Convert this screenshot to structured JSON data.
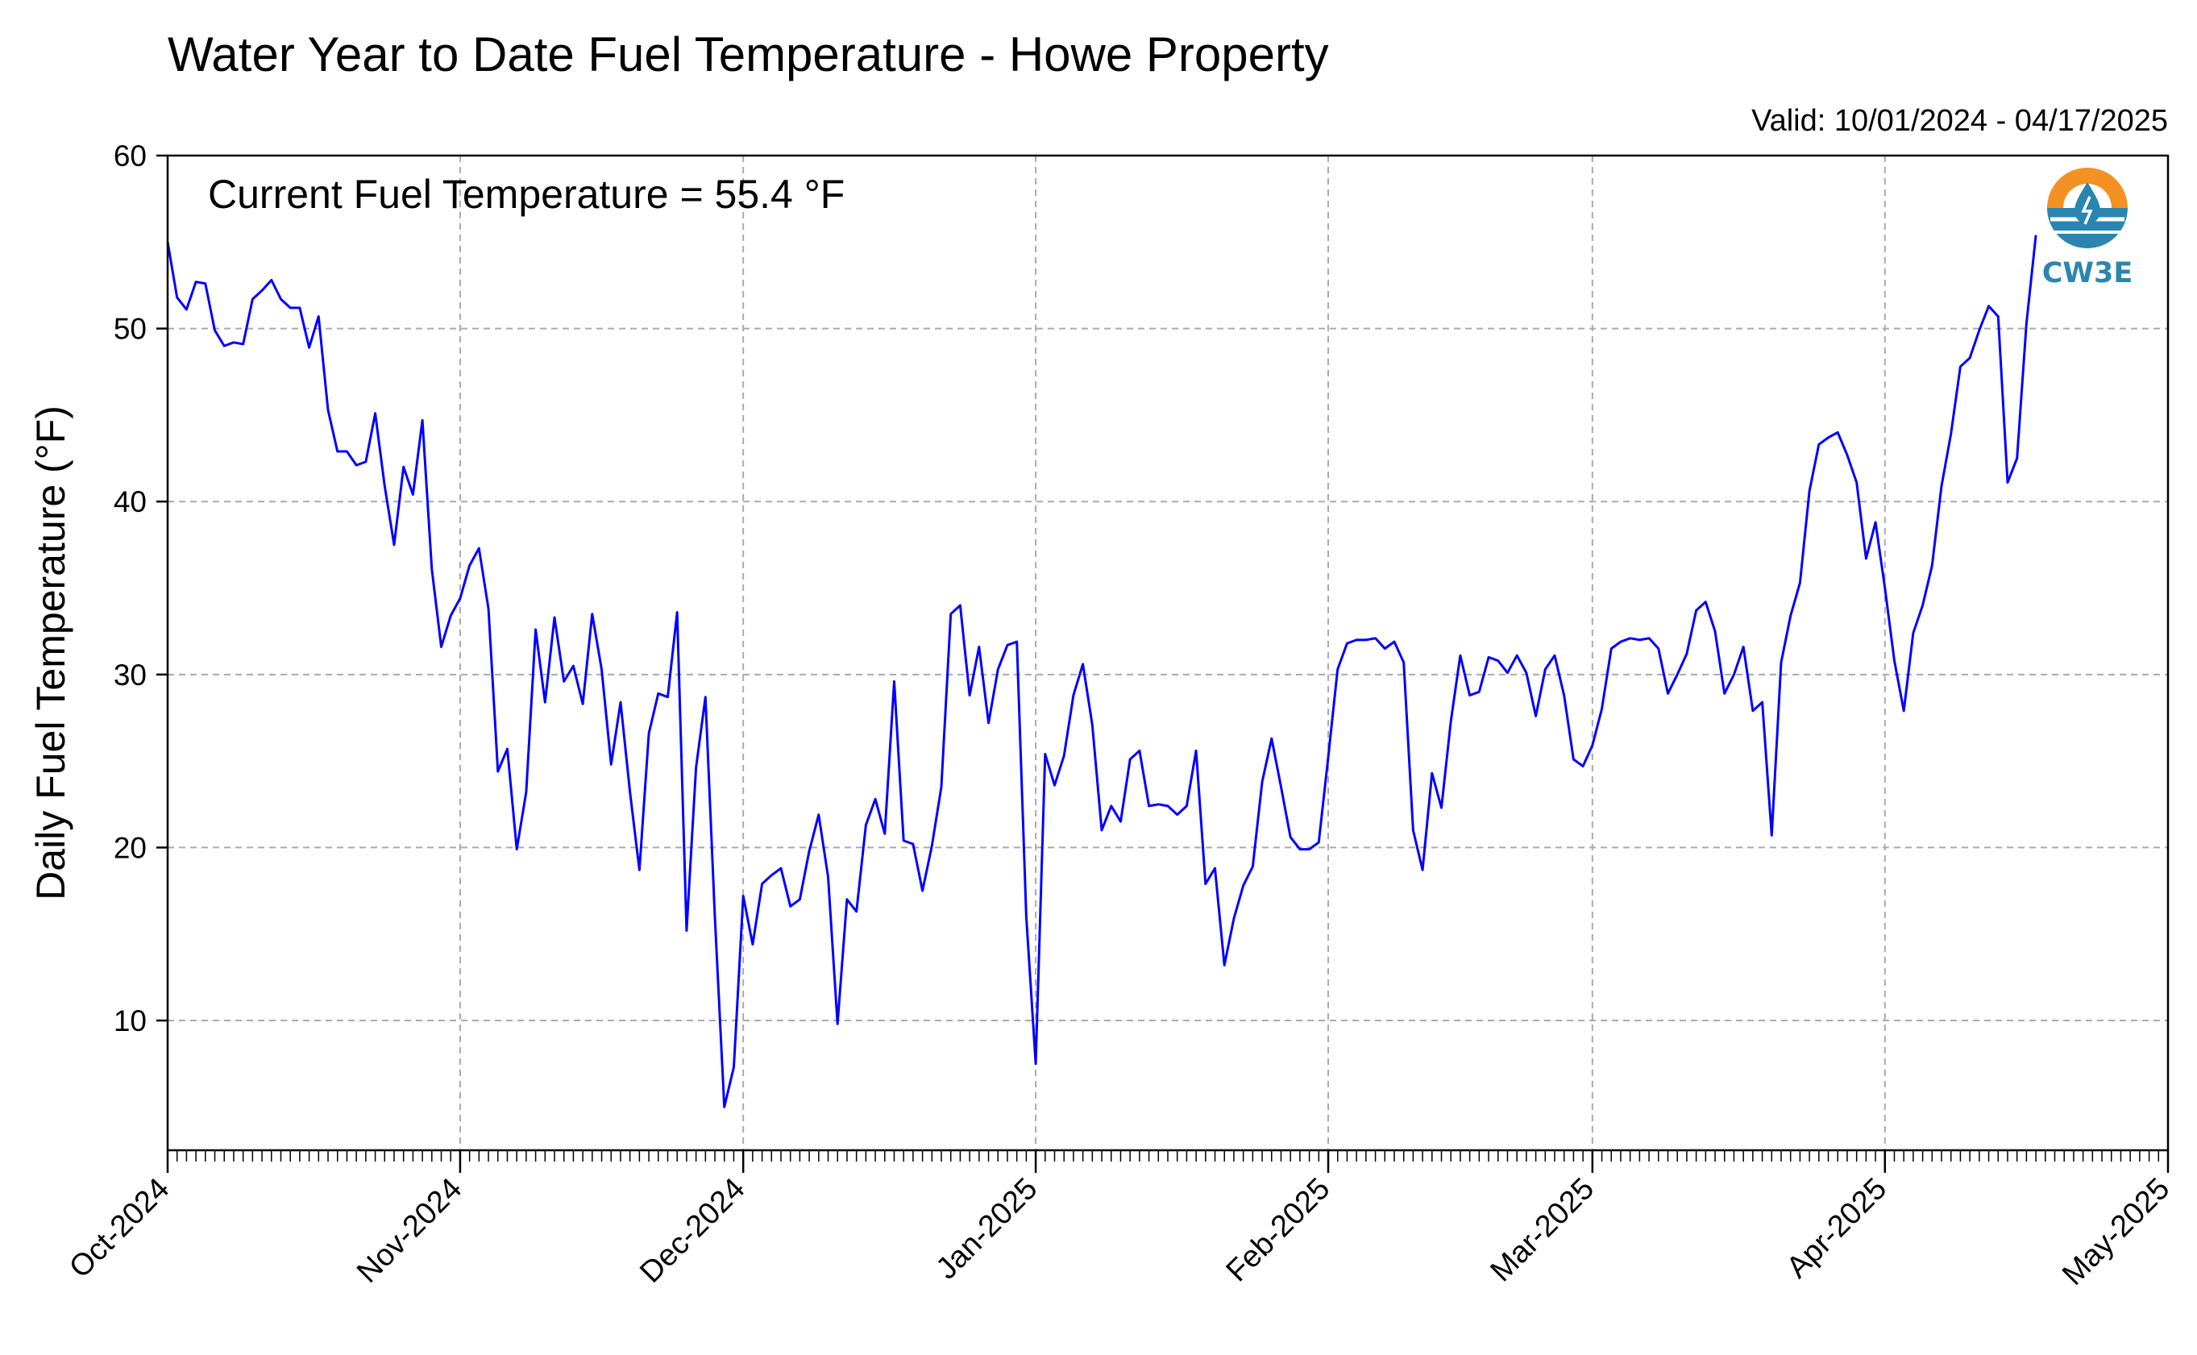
{
  "chart_data": {
    "type": "line",
    "title": "Water Year to Date Fuel Temperature - Howe Property",
    "valid_text": "Valid: 10/01/2024 - 04/17/2025",
    "annotation": "Current Fuel Temperature = 55.4 °F",
    "ylabel": "Daily Fuel Temperature (°F)",
    "xlabel": "",
    "ylim": [
      2.5,
      60
    ],
    "yticks": [
      10,
      20,
      30,
      40,
      50,
      60
    ],
    "xlim": [
      "2024-10-01",
      "2025-05-01"
    ],
    "xticks": [
      {
        "date": "2024-10-01",
        "label": "Oct-2024"
      },
      {
        "date": "2024-11-01",
        "label": "Nov-2024"
      },
      {
        "date": "2024-12-01",
        "label": "Dec-2024"
      },
      {
        "date": "2025-01-01",
        "label": "Jan-2025"
      },
      {
        "date": "2025-02-01",
        "label": "Feb-2025"
      },
      {
        "date": "2025-03-01",
        "label": "Mar-2025"
      },
      {
        "date": "2025-04-01",
        "label": "Apr-2025"
      },
      {
        "date": "2025-05-01",
        "label": "May-2025"
      }
    ],
    "grid": true,
    "line_color": "#0000ff",
    "series": [
      {
        "start_date": "2024-10-01",
        "values": [
          55.0,
          51.8,
          51.1,
          52.7,
          52.6,
          49.9,
          49.0,
          49.2,
          49.1,
          51.7,
          52.2,
          52.8,
          51.7,
          51.2,
          51.2,
          48.9,
          50.7,
          45.3,
          42.9,
          42.9,
          42.1,
          42.3,
          45.1,
          40.9,
          37.5,
          42.0,
          40.4,
          44.7,
          36.1,
          31.6,
          33.4,
          34.4,
          36.3,
          37.3,
          33.8,
          24.4,
          25.7,
          19.9,
          23.2,
          32.6,
          28.4,
          33.3,
          29.6,
          30.5,
          28.3,
          33.5,
          30.3,
          24.8,
          28.4,
          23.2,
          18.7,
          26.6,
          28.9,
          28.7,
          33.6,
          15.2,
          24.6,
          28.7,
          16.0,
          5.0,
          7.3,
          17.2,
          14.4,
          17.9,
          18.4,
          18.8,
          16.6,
          17.0,
          19.8,
          21.9,
          18.3,
          9.8,
          17.0,
          16.3,
          21.3,
          22.8,
          20.8,
          29.6,
          20.4,
          20.2,
          17.5,
          20.1,
          23.5,
          33.5,
          34.0,
          28.8,
          31.6,
          27.2,
          30.3,
          31.7,
          31.9,
          16.0,
          7.5,
          25.4,
          23.6,
          25.3,
          28.8,
          30.6,
          27.1,
          21.0,
          22.4,
          21.5,
          25.1,
          25.6,
          22.4,
          22.5,
          22.4,
          21.9,
          22.4,
          25.6,
          17.9,
          18.8,
          13.2,
          15.9,
          17.8,
          18.9,
          23.8,
          26.3,
          23.5,
          20.6,
          19.9,
          19.9,
          20.3,
          25.2,
          30.3,
          31.8,
          32.0,
          32.0,
          32.1,
          31.5,
          31.9,
          30.7,
          21.0,
          18.7,
          24.3,
          22.3,
          27.3,
          31.1,
          28.8,
          29.0,
          31.0,
          30.8,
          30.1,
          31.1,
          30.1,
          27.6,
          30.3,
          31.1,
          28.8,
          25.1,
          24.7,
          25.9,
          28.0,
          31.5,
          31.9,
          32.1,
          32.0,
          32.1,
          31.5,
          28.9,
          30.0,
          31.2,
          33.7,
          34.2,
          32.5,
          28.9,
          30.0,
          31.6,
          27.9,
          28.4,
          20.7,
          30.7,
          33.4,
          35.3,
          40.6,
          43.3,
          43.7,
          44.0,
          42.7,
          41.1,
          36.7,
          38.8,
          35.0,
          30.8,
          27.9,
          32.4,
          34.0,
          36.3,
          40.9,
          43.9,
          47.8,
          48.3,
          49.9,
          51.3,
          50.7,
          41.1,
          42.5,
          50.3,
          55.4
        ]
      }
    ]
  },
  "logo": {
    "text": "CW3E",
    "orange": "#f39223",
    "blue": "#2a86b0",
    "icon": "water-drop-icon"
  }
}
